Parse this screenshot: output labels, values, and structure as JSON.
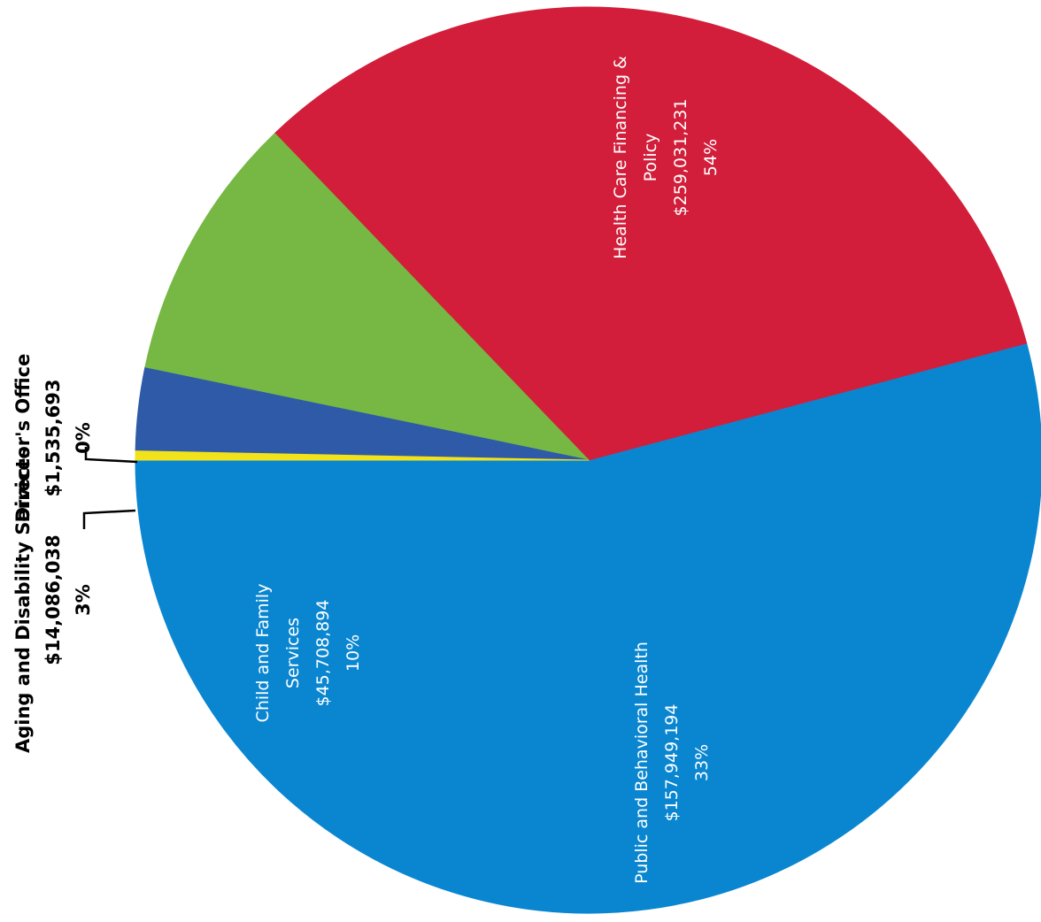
{
  "chart_data": {
    "type": "pie",
    "start_angle_deg": 180,
    "direction": "counterclockwise",
    "slices": [
      {
        "name": "Health Care Financing & Policy",
        "label_lines": [
          "Health Care Financing &",
          "Policy"
        ],
        "amount": 259031231,
        "amount_label": "$259,031,231",
        "percent_label": "54%",
        "color": "#0a86d1"
      },
      {
        "name": "Public and Behavioral Health",
        "label_lines": [
          "Public and Behavioral Health"
        ],
        "amount": 157949194,
        "amount_label": "$157,949,194",
        "percent_label": "33%",
        "color": "#d21e3a"
      },
      {
        "name": "Child and Family Services",
        "label_lines": [
          "Child and Family",
          "Services"
        ],
        "amount": 45708894,
        "amount_label": "$45,708,894",
        "percent_label": "10%",
        "color": "#76b843"
      },
      {
        "name": "Aging and Disability Services",
        "label_lines": [
          "Aging and Disability Services"
        ],
        "amount": 14086038,
        "amount_label": "$14,086,038",
        "percent_label": "3%",
        "color": "#2e5aa8"
      },
      {
        "name": "Director's Office",
        "label_lines": [
          "Director's Office"
        ],
        "amount": 1535693,
        "amount_label": "$1,535,693",
        "percent_label": "0%",
        "color": "#f2e21c"
      }
    ]
  }
}
